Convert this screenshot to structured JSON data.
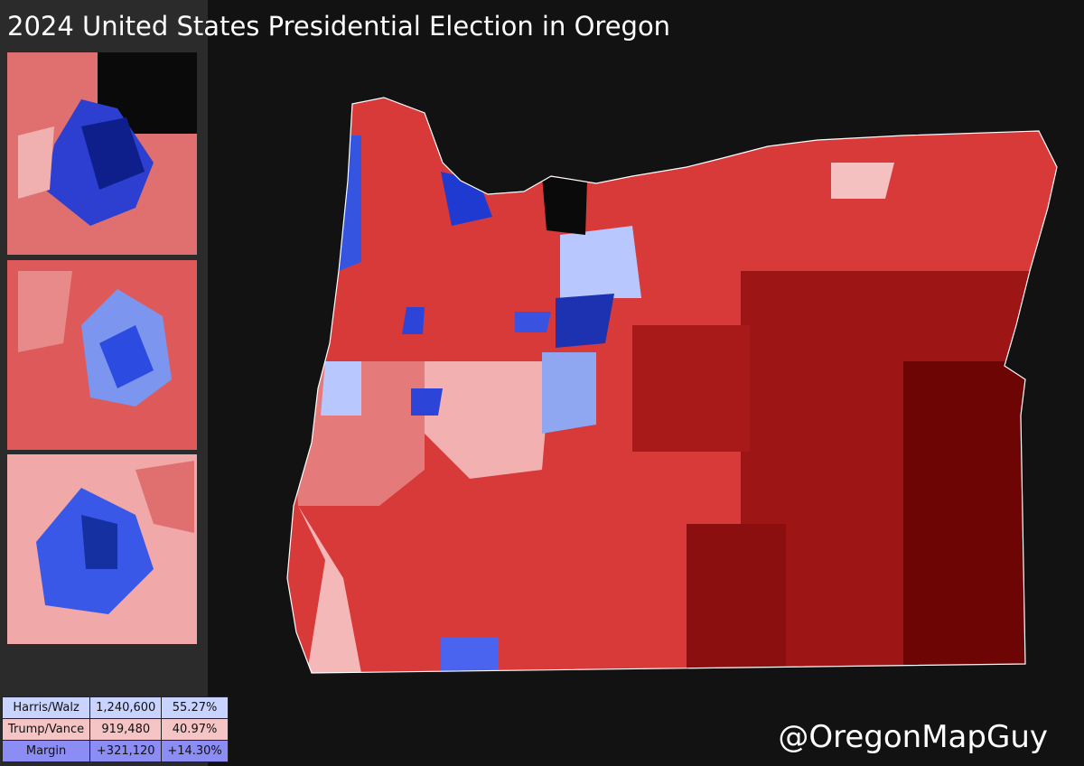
{
  "header": {
    "title": "2024 United States Presidential Election in Oregon"
  },
  "table": {
    "rows": [
      [
        "Harris/Walz",
        "1,240,600",
        "55.27%"
      ],
      [
        "Trump/Vance",
        "919,480",
        "40.97%"
      ],
      [
        "Margin",
        "+321,120",
        "+14.30%"
      ]
    ]
  },
  "credit": "@OregonMapGuy"
}
